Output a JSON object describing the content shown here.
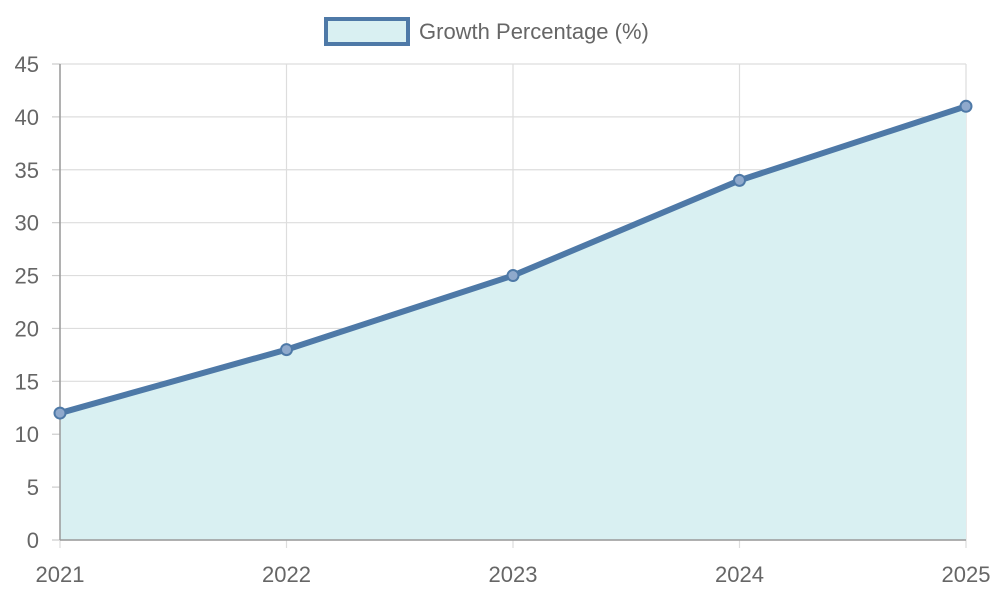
{
  "chart_data": {
    "type": "area",
    "categories": [
      "2021",
      "2022",
      "2023",
      "2024",
      "2025"
    ],
    "series": [
      {
        "name": "Growth Percentage (%)",
        "values": [
          12,
          18,
          25,
          34,
          41
        ],
        "line_color": "#4e79a7",
        "fill_color": "#d9f0f2"
      }
    ],
    "y_ticks": [
      "0",
      "5",
      "10",
      "15",
      "20",
      "25",
      "30",
      "35",
      "40",
      "45"
    ],
    "ylim": [
      0,
      45
    ],
    "grid": true,
    "legend_position": "top-center"
  }
}
